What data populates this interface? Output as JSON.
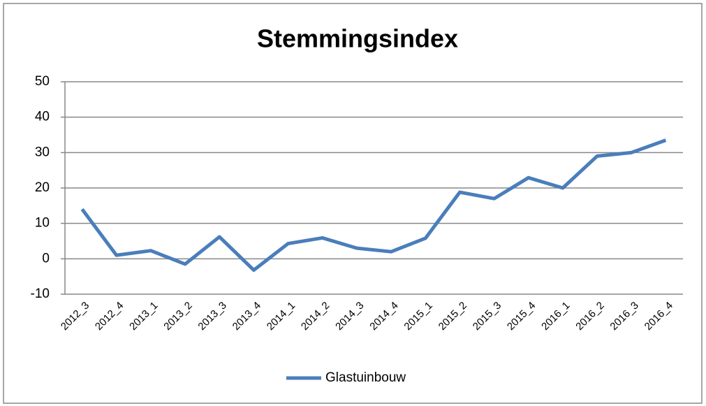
{
  "chart_data": {
    "type": "line",
    "title": "Stemmingsindex",
    "categories": [
      "2012_3",
      "2012_4",
      "2013_1",
      "2013_2",
      "2013_3",
      "2013_4",
      "2014_1",
      "2014_2",
      "2014_3",
      "2014_4",
      "2015_1",
      "2015_2",
      "2015_3",
      "2015_4",
      "2016_1",
      "2016_2",
      "2016_3",
      "2016_4"
    ],
    "series": [
      {
        "name": "Glastuinbouw",
        "color": "#4a7ebb",
        "values": [
          14,
          1,
          2.3,
          -1.5,
          6.2,
          -3.2,
          4.3,
          5.9,
          3,
          2,
          5.8,
          18.8,
          17,
          22.9,
          20,
          29,
          30,
          33.5
        ]
      }
    ],
    "ylim": [
      -10,
      50
    ],
    "yticks": [
      -10,
      0,
      10,
      20,
      30,
      40,
      50
    ],
    "grid": true,
    "legend": "bottom"
  }
}
